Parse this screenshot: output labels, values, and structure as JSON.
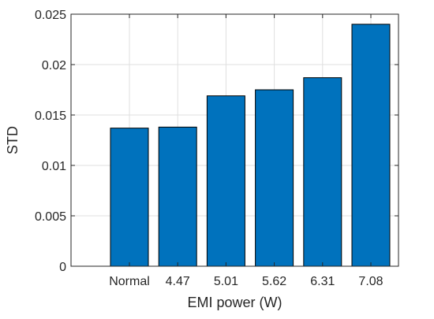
{
  "chart_data": {
    "type": "bar",
    "title": "",
    "xlabel": "EMI power (W)",
    "ylabel": "STD",
    "categories": [
      "Normal",
      "4.47",
      "5.01",
      "5.62",
      "6.31",
      "7.08"
    ],
    "values": [
      0.0137,
      0.0138,
      0.0169,
      0.0175,
      0.0187,
      0.024
    ],
    "ylim": [
      0,
      0.025
    ],
    "yticks": [
      0,
      0.005,
      0.01,
      0.015,
      0.02,
      0.025
    ],
    "ytick_labels": [
      "0",
      "0.005",
      "0.01",
      "0.015",
      "0.02",
      "0.025"
    ],
    "grid": true,
    "legend": "none",
    "bar_color": "#0072BD",
    "bar_edge_color": "#000000",
    "grid_color": "#DFDFDF",
    "axis_color": "#262626"
  }
}
